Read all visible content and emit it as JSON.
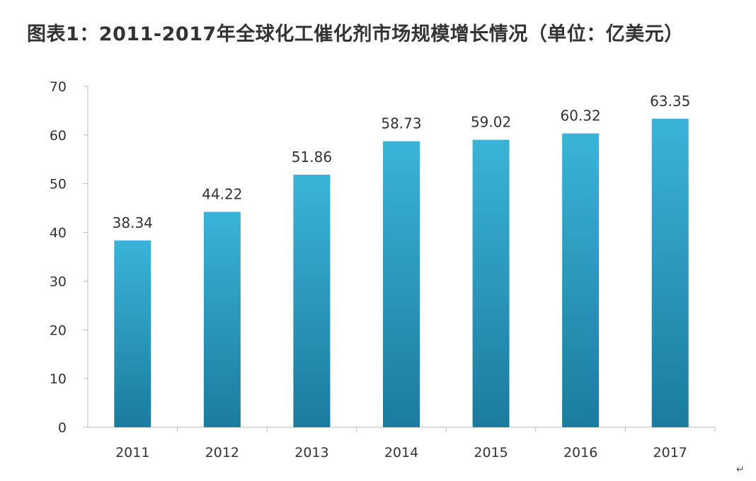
{
  "chart_data": {
    "type": "bar",
    "title": "图表1：2011-2017年全球化工催化剂市场规模增长情况（单位：亿美元）",
    "categories": [
      "2011",
      "2012",
      "2013",
      "2014",
      "2015",
      "2016",
      "2017"
    ],
    "values": [
      38.34,
      44.22,
      51.86,
      58.73,
      59.02,
      60.32,
      63.35
    ],
    "data_labels": [
      "38.34",
      "44.22",
      "51.86",
      "58.73",
      "59.02",
      "60.32",
      "63.35"
    ],
    "xlabel": "",
    "ylabel": "",
    "ylim": [
      0,
      70
    ],
    "yticks": [
      "0",
      "10",
      "20",
      "30",
      "40",
      "50",
      "60",
      "70"
    ],
    "grid": false,
    "legend": "none",
    "bar_color_top": "#3bb3d9",
    "bar_color_bottom": "#1a7c9e"
  },
  "return_mark": "↵"
}
